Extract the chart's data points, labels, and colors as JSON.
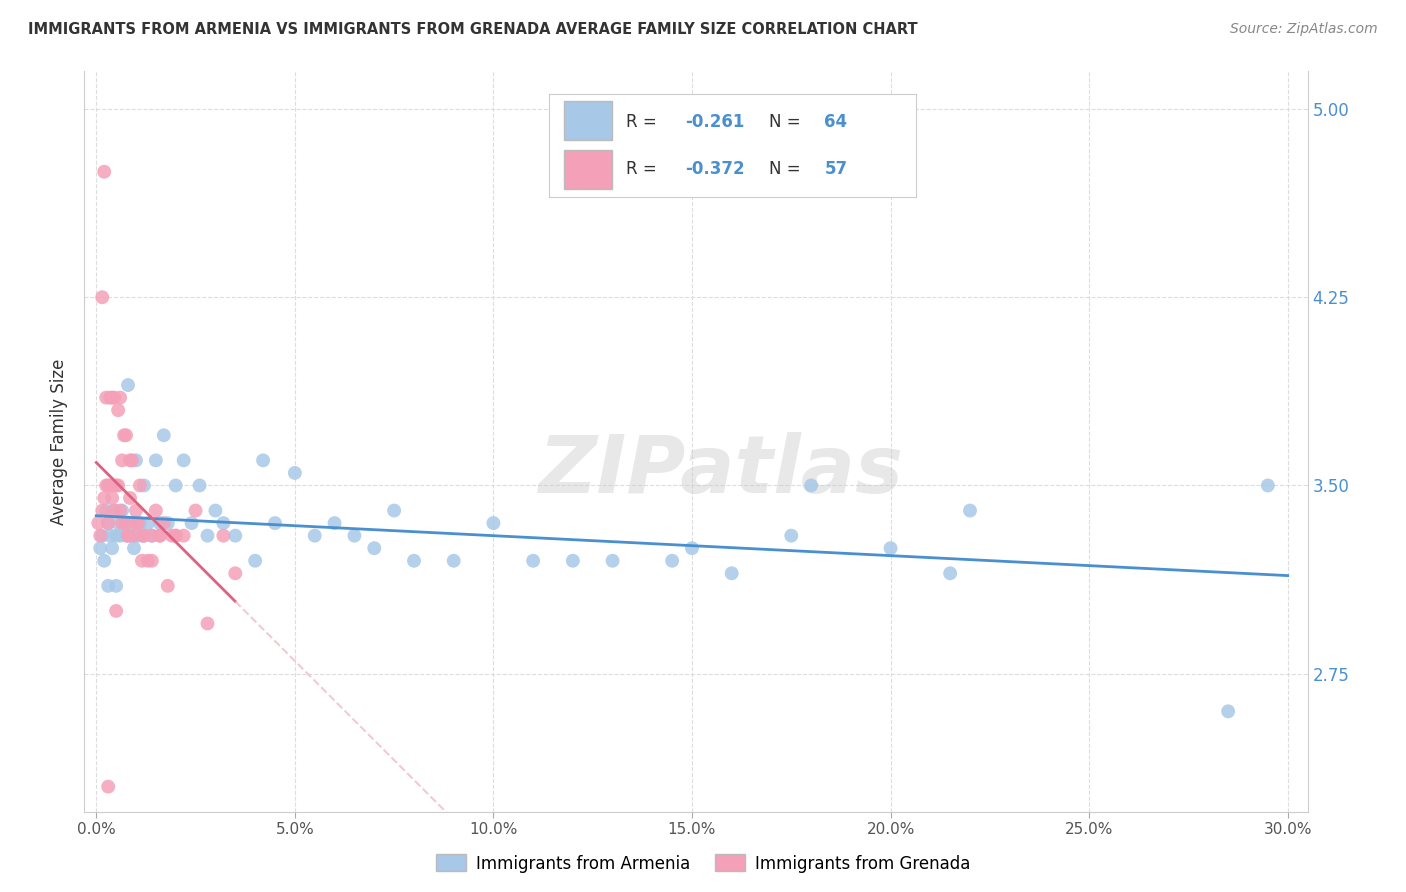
{
  "title": "IMMIGRANTS FROM ARMENIA VS IMMIGRANTS FROM GRENADA AVERAGE FAMILY SIZE CORRELATION CHART",
  "source": "Source: ZipAtlas.com",
  "ylabel": "Average Family Size",
  "xlabel_ticks": [
    "0.0%",
    "5.0%",
    "10.0%",
    "15.0%",
    "20.0%",
    "25.0%",
    "30.0%"
  ],
  "xlabel_vals": [
    0.0,
    5.0,
    10.0,
    15.0,
    20.0,
    25.0,
    30.0
  ],
  "xlim": [
    -0.3,
    30.5
  ],
  "ylim": [
    2.2,
    5.15
  ],
  "yticks": [
    2.75,
    3.5,
    4.25,
    5.0
  ],
  "ytick_labels": [
    "2.75",
    "3.50",
    "4.25",
    "5.00"
  ],
  "armenia_color": "#a8c8e8",
  "grenada_color": "#f4a0b8",
  "armenia_line_color": "#4a90d0",
  "grenada_line_color": "#e06080",
  "grenada_dash_color": "#f4b0c0",
  "watermark": "ZIPatlas",
  "legend_armenia_r": "-0.261",
  "legend_armenia_n": "64",
  "legend_grenada_r": "-0.372",
  "legend_grenada_n": "57",
  "armenia_x": [
    0.1,
    0.15,
    0.2,
    0.25,
    0.3,
    0.35,
    0.4,
    0.45,
    0.5,
    0.55,
    0.6,
    0.65,
    0.7,
    0.75,
    0.8,
    0.85,
    0.9,
    0.95,
    1.0,
    1.05,
    1.1,
    1.15,
    1.2,
    1.3,
    1.4,
    1.5,
    1.6,
    1.7,
    1.8,
    2.0,
    2.2,
    2.4,
    2.6,
    2.8,
    3.0,
    3.2,
    3.5,
    4.0,
    4.2,
    4.5,
    5.0,
    5.5,
    6.0,
    6.5,
    7.0,
    7.5,
    8.0,
    9.0,
    10.0,
    11.0,
    12.0,
    13.0,
    14.5,
    15.0,
    16.0,
    17.5,
    18.0,
    20.0,
    21.5,
    22.0,
    0.3,
    0.5,
    28.5,
    29.5
  ],
  "armenia_y": [
    3.25,
    3.3,
    3.2,
    3.4,
    3.35,
    3.3,
    3.25,
    3.4,
    3.3,
    3.35,
    3.3,
    3.4,
    3.35,
    3.3,
    3.9,
    3.35,
    3.3,
    3.25,
    3.6,
    3.3,
    3.35,
    3.3,
    3.5,
    3.35,
    3.3,
    3.6,
    3.35,
    3.7,
    3.35,
    3.5,
    3.6,
    3.35,
    3.5,
    3.3,
    3.4,
    3.35,
    3.3,
    3.2,
    3.6,
    3.35,
    3.55,
    3.3,
    3.35,
    3.3,
    3.25,
    3.4,
    3.2,
    3.2,
    3.35,
    3.2,
    3.2,
    3.2,
    3.2,
    3.25,
    3.15,
    3.3,
    3.5,
    3.25,
    3.15,
    3.4,
    3.1,
    3.1,
    2.6,
    3.5
  ],
  "grenada_x": [
    0.05,
    0.1,
    0.15,
    0.2,
    0.25,
    0.3,
    0.35,
    0.4,
    0.45,
    0.5,
    0.55,
    0.6,
    0.65,
    0.7,
    0.75,
    0.8,
    0.85,
    0.9,
    0.95,
    1.0,
    1.05,
    1.1,
    1.15,
    1.2,
    1.3,
    1.4,
    1.5,
    1.6,
    1.7,
    1.8,
    1.9,
    2.0,
    2.2,
    2.5,
    2.8,
    3.2,
    0.15,
    0.25,
    0.35,
    0.45,
    0.55,
    0.65,
    0.75,
    0.85,
    0.2,
    0.4,
    0.6,
    0.8,
    1.0,
    1.2,
    1.4,
    1.6,
    2.0,
    3.5,
    0.3,
    0.5,
    0.3
  ],
  "grenada_y": [
    3.35,
    3.3,
    3.4,
    3.45,
    3.5,
    3.35,
    3.5,
    3.45,
    3.4,
    3.5,
    3.5,
    3.4,
    3.35,
    3.7,
    3.35,
    3.3,
    3.45,
    3.6,
    3.3,
    3.4,
    3.35,
    3.5,
    3.2,
    3.3,
    3.2,
    3.3,
    3.4,
    3.3,
    3.35,
    3.1,
    3.3,
    3.3,
    3.3,
    3.4,
    2.95,
    3.3,
    4.25,
    3.85,
    3.85,
    3.85,
    3.8,
    3.6,
    3.7,
    3.6,
    4.75,
    3.85,
    3.85,
    3.3,
    3.35,
    3.3,
    3.2,
    3.3,
    3.3,
    3.15,
    3.5,
    3.0,
    2.3
  ],
  "grenada_solid_end": 3.5,
  "background_color": "#ffffff",
  "grid_color": "#dddddd",
  "spine_color": "#cccccc"
}
